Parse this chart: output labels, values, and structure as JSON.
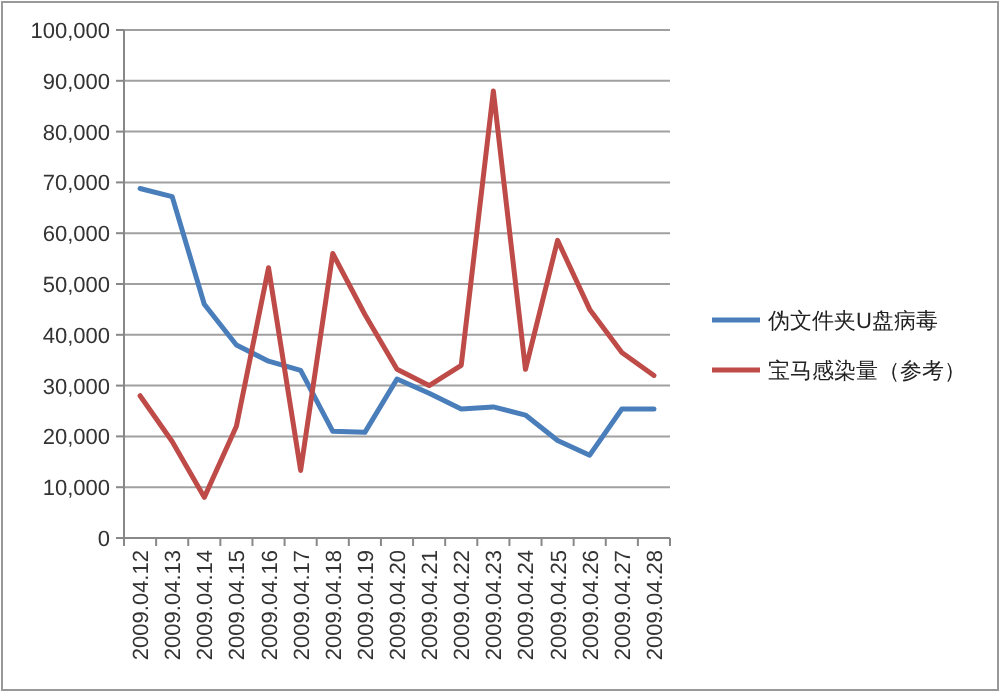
{
  "chart_data": {
    "type": "line",
    "categories": [
      "2009.04.12",
      "2009.04.13",
      "2009.04.14",
      "2009.04.15",
      "2009.04.16",
      "2009.04.17",
      "2009.04.18",
      "2009.04.19",
      "2009.04.20",
      "2009.04.21",
      "2009.04.22",
      "2009.04.23",
      "2009.04.24",
      "2009.04.25",
      "2009.04.26",
      "2009.04.27",
      "2009.04.28"
    ],
    "series": [
      {
        "name": "伪文件夹U盘病毒",
        "color": "#4a7ebb",
        "values": [
          68800,
          67200,
          46000,
          38000,
          34800,
          33000,
          21000,
          20800,
          31300,
          28500,
          25400,
          25800,
          24200,
          19200,
          16300,
          25400,
          25400
        ]
      },
      {
        "name": "宝马感染量（参考）",
        "color": "#be4b48",
        "values": [
          28000,
          19000,
          8000,
          22000,
          53200,
          13300,
          56000,
          44000,
          33200,
          30000,
          34000,
          88000,
          33200,
          58600,
          45000,
          36500,
          32000
        ]
      }
    ],
    "ylim": [
      0,
      100000
    ],
    "yticks": [
      {
        "value": 0,
        "label": "0"
      },
      {
        "value": 10000,
        "label": "10,000"
      },
      {
        "value": 20000,
        "label": "20,000"
      },
      {
        "value": 30000,
        "label": "30,000"
      },
      {
        "value": 40000,
        "label": "40,000"
      },
      {
        "value": 50000,
        "label": "50,000"
      },
      {
        "value": 60000,
        "label": "60,000"
      },
      {
        "value": 70000,
        "label": "70,000"
      },
      {
        "value": 80000,
        "label": "80,000"
      },
      {
        "value": 90000,
        "label": "90,000"
      },
      {
        "value": 100000,
        "label": "100,000"
      }
    ],
    "grid": "y",
    "legend": "right",
    "marker": "none",
    "line_style": "solid"
  }
}
